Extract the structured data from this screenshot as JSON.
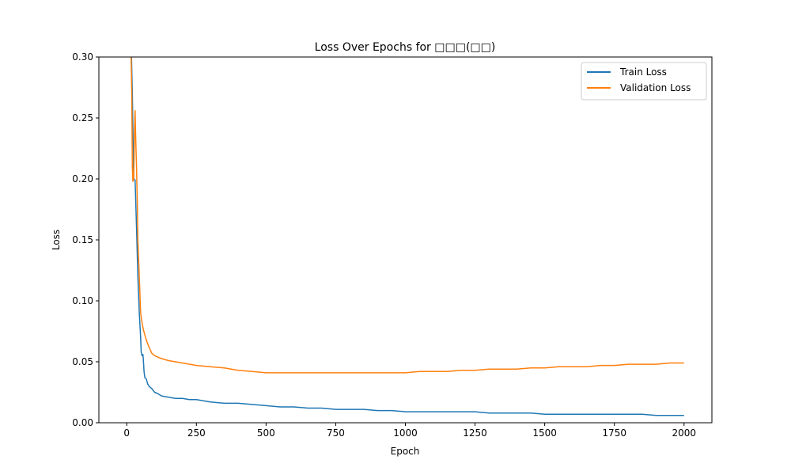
{
  "chart_data": {
    "type": "line",
    "title": "Loss Over Epochs for □□□(□□)",
    "xlabel": "Epoch",
    "ylabel": "Loss",
    "xlim": [
      -100,
      2100
    ],
    "ylim": [
      0,
      0.3
    ],
    "xticks": [
      0,
      250,
      500,
      750,
      1000,
      1250,
      1500,
      1750,
      2000
    ],
    "yticks": [
      0.0,
      0.05,
      0.1,
      0.15,
      0.2,
      0.25,
      0.3
    ],
    "xtick_labels": [
      "0",
      "250",
      "500",
      "750",
      "1000",
      "1250",
      "1500",
      "1750",
      "2000"
    ],
    "ytick_labels": [
      "0.00",
      "0.05",
      "0.10",
      "0.15",
      "0.20",
      "0.25",
      "0.30"
    ],
    "grid": false,
    "legend_position": "upper right",
    "series": [
      {
        "name": "Train Loss",
        "color": "#1f77b4",
        "x": [
          15,
          20,
          25,
          30,
          35,
          40,
          45,
          50,
          52,
          55,
          58,
          60,
          62,
          65,
          70,
          75,
          80,
          90,
          100,
          110,
          125,
          150,
          175,
          200,
          225,
          250,
          275,
          300,
          350,
          400,
          450,
          500,
          550,
          600,
          650,
          700,
          750,
          800,
          850,
          900,
          950,
          1000,
          1050,
          1100,
          1150,
          1200,
          1250,
          1300,
          1350,
          1400,
          1450,
          1500,
          1550,
          1600,
          1650,
          1700,
          1750,
          1800,
          1850,
          1900,
          1950,
          2000
        ],
        "y": [
          0.32,
          0.27,
          0.2,
          0.199,
          0.16,
          0.12,
          0.09,
          0.07,
          0.058,
          0.055,
          0.056,
          0.05,
          0.042,
          0.037,
          0.036,
          0.032,
          0.03,
          0.028,
          0.025,
          0.024,
          0.022,
          0.021,
          0.02,
          0.02,
          0.019,
          0.019,
          0.018,
          0.017,
          0.016,
          0.016,
          0.015,
          0.014,
          0.013,
          0.013,
          0.012,
          0.012,
          0.011,
          0.011,
          0.011,
          0.01,
          0.01,
          0.009,
          0.009,
          0.009,
          0.009,
          0.009,
          0.009,
          0.008,
          0.008,
          0.008,
          0.008,
          0.007,
          0.007,
          0.007,
          0.007,
          0.007,
          0.007,
          0.007,
          0.007,
          0.006,
          0.006,
          0.006
        ]
      },
      {
        "name": "Validation Loss",
        "color": "#ff7f0e",
        "x": [
          15,
          18,
          20,
          22,
          25,
          28,
          30,
          32,
          35,
          38,
          40,
          45,
          50,
          55,
          60,
          65,
          70,
          80,
          90,
          100,
          120,
          150,
          200,
          250,
          300,
          350,
          400,
          450,
          500,
          550,
          600,
          650,
          700,
          750,
          800,
          850,
          900,
          950,
          1000,
          1050,
          1100,
          1150,
          1200,
          1250,
          1300,
          1350,
          1400,
          1450,
          1500,
          1550,
          1600,
          1650,
          1700,
          1750,
          1800,
          1850,
          1900,
          1950,
          2000
        ],
        "y": [
          0.31,
          0.27,
          0.21,
          0.198,
          0.2,
          0.24,
          0.256,
          0.235,
          0.21,
          0.18,
          0.15,
          0.12,
          0.09,
          0.082,
          0.076,
          0.072,
          0.068,
          0.062,
          0.057,
          0.055,
          0.053,
          0.051,
          0.049,
          0.047,
          0.046,
          0.045,
          0.043,
          0.042,
          0.041,
          0.041,
          0.041,
          0.041,
          0.041,
          0.041,
          0.041,
          0.041,
          0.041,
          0.041,
          0.041,
          0.042,
          0.042,
          0.042,
          0.043,
          0.043,
          0.044,
          0.044,
          0.044,
          0.045,
          0.045,
          0.046,
          0.046,
          0.046,
          0.047,
          0.047,
          0.048,
          0.048,
          0.048,
          0.049,
          0.049
        ]
      }
    ]
  }
}
